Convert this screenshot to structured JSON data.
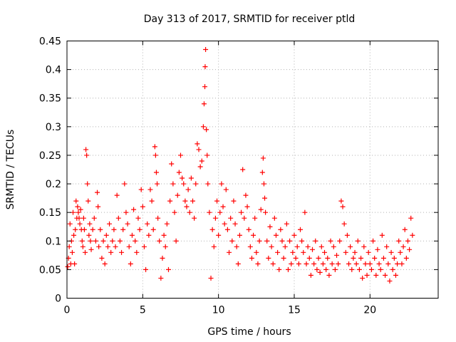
{
  "chart_data": {
    "type": "scatter",
    "title": "Day 313 of 2017, SRMTID for receiver ptld",
    "xlabel": "GPS time / hours",
    "ylabel": "SRMTID / TECUs",
    "xlim": [
      0,
      24.5
    ],
    "ylim": [
      0,
      0.45
    ],
    "xticks": [
      0,
      5,
      10,
      15,
      20
    ],
    "yticks": [
      0,
      0.05,
      0.1,
      0.15,
      0.2,
      0.25,
      0.3,
      0.35,
      0.4,
      0.45
    ],
    "xtick_labels": [
      "0",
      "5",
      "10",
      "15",
      "20"
    ],
    "ytick_labels": [
      "0",
      "0.05",
      "0.1",
      "0.15",
      "0.2",
      "0.25",
      "0.3",
      "0.35",
      "0.4",
      "0.45"
    ],
    "grid": true,
    "marker": "plus",
    "color": "#ff0000",
    "series": [
      {
        "name": "",
        "points": [
          [
            0.05,
            0.055
          ],
          [
            0.1,
            0.07
          ],
          [
            0.15,
            0.09
          ],
          [
            0.2,
            0.13
          ],
          [
            0.25,
            0.06
          ],
          [
            0.3,
            0.1
          ],
          [
            0.35,
            0.08
          ],
          [
            0.4,
            0.15
          ],
          [
            0.45,
            0.11
          ],
          [
            0.5,
            0.06
          ],
          [
            0.55,
            0.12
          ],
          [
            0.6,
            0.17
          ],
          [
            0.65,
            0.14
          ],
          [
            0.7,
            0.16
          ],
          [
            0.75,
            0.15
          ],
          [
            0.8,
            0.14
          ],
          [
            0.85,
            0.13
          ],
          [
            0.9,
            0.155
          ],
          [
            0.95,
            0.12
          ],
          [
            1.0,
            0.1
          ],
          [
            1.05,
            0.09
          ],
          [
            1.1,
            0.14
          ],
          [
            1.15,
            0.12
          ],
          [
            1.2,
            0.08
          ],
          [
            1.25,
            0.26
          ],
          [
            1.3,
            0.25
          ],
          [
            1.35,
            0.2
          ],
          [
            1.4,
            0.17
          ],
          [
            1.45,
            0.11
          ],
          [
            1.5,
            0.13
          ],
          [
            1.55,
            0.1
          ],
          [
            1.6,
            0.085
          ],
          [
            1.7,
            0.12
          ],
          [
            1.8,
            0.14
          ],
          [
            1.9,
            0.1
          ],
          [
            2.0,
            0.185
          ],
          [
            2.05,
            0.16
          ],
          [
            2.1,
            0.09
          ],
          [
            2.2,
            0.12
          ],
          [
            2.3,
            0.07
          ],
          [
            2.4,
            0.1
          ],
          [
            2.5,
            0.06
          ],
          [
            2.6,
            0.11
          ],
          [
            2.7,
            0.09
          ],
          [
            2.8,
            0.13
          ],
          [
            2.9,
            0.08
          ],
          [
            3.0,
            0.1
          ],
          [
            3.1,
            0.12
          ],
          [
            3.2,
            0.09
          ],
          [
            3.3,
            0.18
          ],
          [
            3.4,
            0.14
          ],
          [
            3.5,
            0.1
          ],
          [
            3.6,
            0.08
          ],
          [
            3.7,
            0.12
          ],
          [
            3.8,
            0.2
          ],
          [
            3.9,
            0.15
          ],
          [
            4.0,
            0.13
          ],
          [
            4.1,
            0.09
          ],
          [
            4.2,
            0.06
          ],
          [
            4.3,
            0.11
          ],
          [
            4.4,
            0.155
          ],
          [
            4.5,
            0.1
          ],
          [
            4.6,
            0.08
          ],
          [
            4.7,
            0.14
          ],
          [
            4.8,
            0.12
          ],
          [
            4.9,
            0.19
          ],
          [
            5.0,
            0.16
          ],
          [
            5.1,
            0.09
          ],
          [
            5.2,
            0.05
          ],
          [
            5.3,
            0.13
          ],
          [
            5.4,
            0.11
          ],
          [
            5.5,
            0.19
          ],
          [
            5.6,
            0.17
          ],
          [
            5.7,
            0.12
          ],
          [
            5.8,
            0.265
          ],
          [
            5.85,
            0.25
          ],
          [
            5.9,
            0.22
          ],
          [
            5.95,
            0.2
          ],
          [
            6.0,
            0.14
          ],
          [
            6.1,
            0.1
          ],
          [
            6.2,
            0.035
          ],
          [
            6.3,
            0.07
          ],
          [
            6.4,
            0.11
          ],
          [
            6.5,
            0.09
          ],
          [
            6.6,
            0.13
          ],
          [
            6.7,
            0.05
          ],
          [
            6.8,
            0.17
          ],
          [
            6.9,
            0.235
          ],
          [
            7.0,
            0.2
          ],
          [
            7.1,
            0.15
          ],
          [
            7.2,
            0.1
          ],
          [
            7.3,
            0.18
          ],
          [
            7.4,
            0.22
          ],
          [
            7.5,
            0.25
          ],
          [
            7.6,
            0.21
          ],
          [
            7.7,
            0.2
          ],
          [
            7.8,
            0.17
          ],
          [
            7.9,
            0.16
          ],
          [
            8.0,
            0.19
          ],
          [
            8.1,
            0.15
          ],
          [
            8.2,
            0.21
          ],
          [
            8.3,
            0.17
          ],
          [
            8.4,
            0.14
          ],
          [
            8.5,
            0.2
          ],
          [
            8.6,
            0.27
          ],
          [
            8.7,
            0.26
          ],
          [
            8.8,
            0.23
          ],
          [
            8.9,
            0.24
          ],
          [
            9.0,
            0.3
          ],
          [
            9.05,
            0.34
          ],
          [
            9.1,
            0.37
          ],
          [
            9.12,
            0.405
          ],
          [
            9.15,
            0.435
          ],
          [
            9.2,
            0.295
          ],
          [
            9.25,
            0.25
          ],
          [
            9.3,
            0.2
          ],
          [
            9.4,
            0.15
          ],
          [
            9.5,
            0.035
          ],
          [
            9.6,
            0.12
          ],
          [
            9.7,
            0.09
          ],
          [
            9.8,
            0.14
          ],
          [
            9.9,
            0.17
          ],
          [
            10.0,
            0.11
          ],
          [
            10.1,
            0.15
          ],
          [
            10.2,
            0.2
          ],
          [
            10.3,
            0.16
          ],
          [
            10.4,
            0.13
          ],
          [
            10.5,
            0.19
          ],
          [
            10.6,
            0.12
          ],
          [
            10.7,
            0.08
          ],
          [
            10.8,
            0.14
          ],
          [
            10.9,
            0.1
          ],
          [
            11.0,
            0.17
          ],
          [
            11.1,
            0.13
          ],
          [
            11.2,
            0.09
          ],
          [
            11.3,
            0.06
          ],
          [
            11.4,
            0.11
          ],
          [
            11.5,
            0.15
          ],
          [
            11.6,
            0.225
          ],
          [
            11.7,
            0.14
          ],
          [
            11.8,
            0.18
          ],
          [
            11.9,
            0.16
          ],
          [
            12.0,
            0.12
          ],
          [
            12.1,
            0.09
          ],
          [
            12.2,
            0.07
          ],
          [
            12.3,
            0.11
          ],
          [
            12.4,
            0.14
          ],
          [
            12.5,
            0.08
          ],
          [
            12.6,
            0.06
          ],
          [
            12.7,
            0.1
          ],
          [
            12.8,
            0.155
          ],
          [
            12.9,
            0.22
          ],
          [
            12.95,
            0.245
          ],
          [
            13.0,
            0.2
          ],
          [
            13.05,
            0.175
          ],
          [
            13.1,
            0.15
          ],
          [
            13.2,
            0.1
          ],
          [
            13.3,
            0.07
          ],
          [
            13.4,
            0.125
          ],
          [
            13.5,
            0.09
          ],
          [
            13.6,
            0.06
          ],
          [
            13.7,
            0.14
          ],
          [
            13.8,
            0.11
          ],
          [
            13.9,
            0.08
          ],
          [
            14.0,
            0.05
          ],
          [
            14.1,
            0.12
          ],
          [
            14.2,
            0.1
          ],
          [
            14.3,
            0.07
          ],
          [
            14.4,
            0.09
          ],
          [
            14.5,
            0.13
          ],
          [
            14.6,
            0.05
          ],
          [
            14.7,
            0.1
          ],
          [
            14.8,
            0.06
          ],
          [
            14.9,
            0.08
          ],
          [
            15.0,
            0.11
          ],
          [
            15.1,
            0.07
          ],
          [
            15.2,
            0.09
          ],
          [
            15.3,
            0.06
          ],
          [
            15.4,
            0.12
          ],
          [
            15.5,
            0.1
          ],
          [
            15.6,
            0.08
          ],
          [
            15.7,
            0.15
          ],
          [
            15.8,
            0.06
          ],
          [
            15.9,
            0.09
          ],
          [
            16.0,
            0.07
          ],
          [
            16.1,
            0.04
          ],
          [
            16.2,
            0.085
          ],
          [
            16.3,
            0.06
          ],
          [
            16.4,
            0.1
          ],
          [
            16.5,
            0.05
          ],
          [
            16.6,
            0.07
          ],
          [
            16.7,
            0.045
          ],
          [
            16.8,
            0.09
          ],
          [
            16.9,
            0.06
          ],
          [
            17.0,
            0.08
          ],
          [
            17.1,
            0.05
          ],
          [
            17.2,
            0.07
          ],
          [
            17.3,
            0.04
          ],
          [
            17.4,
            0.1
          ],
          [
            17.5,
            0.06
          ],
          [
            17.6,
            0.09
          ],
          [
            17.7,
            0.05
          ],
          [
            17.8,
            0.075
          ],
          [
            17.9,
            0.06
          ],
          [
            18.0,
            0.1
          ],
          [
            18.1,
            0.17
          ],
          [
            18.2,
            0.16
          ],
          [
            18.3,
            0.13
          ],
          [
            18.4,
            0.08
          ],
          [
            18.5,
            0.11
          ],
          [
            18.6,
            0.06
          ],
          [
            18.7,
            0.09
          ],
          [
            18.8,
            0.05
          ],
          [
            18.9,
            0.07
          ],
          [
            19.0,
            0.08
          ],
          [
            19.1,
            0.06
          ],
          [
            19.2,
            0.1
          ],
          [
            19.3,
            0.05
          ],
          [
            19.4,
            0.07
          ],
          [
            19.5,
            0.035
          ],
          [
            19.6,
            0.09
          ],
          [
            19.7,
            0.06
          ],
          [
            19.8,
            0.04
          ],
          [
            19.9,
            0.08
          ],
          [
            20.0,
            0.06
          ],
          [
            20.1,
            0.05
          ],
          [
            20.2,
            0.1
          ],
          [
            20.3,
            0.07
          ],
          [
            20.4,
            0.04
          ],
          [
            20.5,
            0.085
          ],
          [
            20.6,
            0.06
          ],
          [
            20.7,
            0.05
          ],
          [
            20.8,
            0.11
          ],
          [
            20.9,
            0.07
          ],
          [
            21.0,
            0.04
          ],
          [
            21.1,
            0.09
          ],
          [
            21.2,
            0.06
          ],
          [
            21.3,
            0.03
          ],
          [
            21.4,
            0.08
          ],
          [
            21.5,
            0.05
          ],
          [
            21.6,
            0.07
          ],
          [
            21.7,
            0.04
          ],
          [
            21.8,
            0.06
          ],
          [
            21.9,
            0.1
          ],
          [
            22.0,
            0.08
          ],
          [
            22.1,
            0.06
          ],
          [
            22.2,
            0.09
          ],
          [
            22.3,
            0.12
          ],
          [
            22.4,
            0.07
          ],
          [
            22.5,
            0.1
          ],
          [
            22.6,
            0.085
          ],
          [
            22.7,
            0.14
          ],
          [
            22.8,
            0.11
          ]
        ]
      }
    ]
  }
}
